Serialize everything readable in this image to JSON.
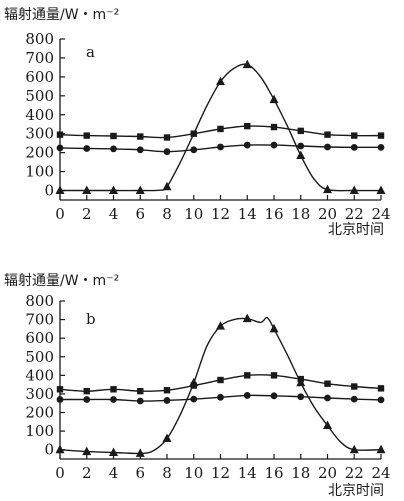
{
  "chart_data": [
    {
      "type": "line",
      "panel_label": "a",
      "ylabel": "辐射通量/W・m⁻²",
      "xlabel": "北京时间",
      "xlim": [
        0,
        24
      ],
      "ylim": [
        -50,
        800
      ],
      "x_ticks": [
        0,
        2,
        4,
        6,
        8,
        10,
        12,
        14,
        16,
        18,
        20,
        22,
        24
      ],
      "y_ticks": [
        0,
        100,
        200,
        300,
        400,
        500,
        600,
        700,
        800
      ],
      "grid": false,
      "series": [
        {
          "marker": "triangle",
          "x": [
            0,
            2,
            4,
            6,
            7.5,
            8,
            9,
            10,
            11,
            12,
            13,
            14,
            15,
            16,
            17,
            18,
            19,
            20,
            22,
            24
          ],
          "y": [
            0,
            0,
            0,
            0,
            2,
            20,
            150,
            300,
            450,
            575,
            645,
            665,
            600,
            480,
            340,
            185,
            60,
            5,
            0,
            0
          ],
          "marker_x": [
            0,
            2,
            4,
            6,
            8,
            12,
            14,
            16,
            18,
            20,
            22,
            24
          ]
        },
        {
          "marker": "square",
          "x": [
            0,
            2,
            4,
            6,
            8,
            10,
            12,
            14,
            16,
            18,
            20,
            22,
            24
          ],
          "y": [
            295,
            290,
            288,
            285,
            280,
            300,
            325,
            340,
            335,
            315,
            295,
            290,
            290
          ],
          "marker_x": [
            0,
            2,
            4,
            6,
            8,
            10,
            12,
            14,
            16,
            18,
            20,
            22,
            24
          ]
        },
        {
          "marker": "circle",
          "x": [
            0,
            2,
            4,
            6,
            8,
            10,
            12,
            14,
            16,
            18,
            20,
            22,
            24
          ],
          "y": [
            225,
            222,
            220,
            215,
            205,
            215,
            230,
            240,
            240,
            235,
            230,
            228,
            228
          ],
          "marker_x": [
            0,
            2,
            4,
            6,
            8,
            10,
            12,
            14,
            16,
            18,
            20,
            22,
            24
          ]
        }
      ]
    },
    {
      "type": "line",
      "panel_label": "b",
      "ylabel": "辐射通量/W・m⁻²",
      "xlabel": "北京时间",
      "xlim": [
        0,
        24
      ],
      "ylim": [
        -50,
        800
      ],
      "x_ticks": [
        0,
        2,
        4,
        6,
        8,
        10,
        12,
        14,
        16,
        18,
        20,
        22,
        24
      ],
      "y_ticks": [
        0,
        100,
        200,
        300,
        400,
        500,
        600,
        700,
        800
      ],
      "grid": false,
      "series": [
        {
          "marker": "triangle",
          "x": [
            0,
            2,
            4,
            6,
            7,
            8,
            9,
            10,
            11,
            12,
            13,
            14,
            15,
            15.5,
            16,
            17,
            18,
            19,
            20,
            21,
            22,
            24
          ],
          "y": [
            0,
            -10,
            -15,
            -20,
            -5,
            60,
            190,
            360,
            560,
            665,
            700,
            705,
            685,
            710,
            650,
            510,
            360,
            230,
            130,
            40,
            0,
            0
          ],
          "marker_x": [
            0,
            2,
            4,
            6,
            8,
            10,
            12,
            14,
            16,
            18,
            20,
            22,
            24
          ]
        },
        {
          "marker": "square",
          "x": [
            0,
            2,
            4,
            6,
            8,
            10,
            12,
            14,
            16,
            18,
            20,
            22,
            24
          ],
          "y": [
            325,
            315,
            325,
            315,
            320,
            345,
            375,
            400,
            400,
            380,
            355,
            340,
            330
          ],
          "marker_x": [
            0,
            2,
            4,
            6,
            8,
            10,
            12,
            14,
            16,
            18,
            20,
            22,
            24
          ]
        },
        {
          "marker": "circle",
          "x": [
            0,
            2,
            4,
            6,
            8,
            10,
            12,
            14,
            16,
            18,
            20,
            22,
            24
          ],
          "y": [
            270,
            270,
            270,
            262,
            265,
            272,
            282,
            292,
            290,
            285,
            278,
            272,
            268
          ],
          "marker_x": [
            0,
            2,
            4,
            6,
            8,
            10,
            12,
            14,
            16,
            18,
            20,
            22,
            24
          ]
        }
      ]
    }
  ]
}
